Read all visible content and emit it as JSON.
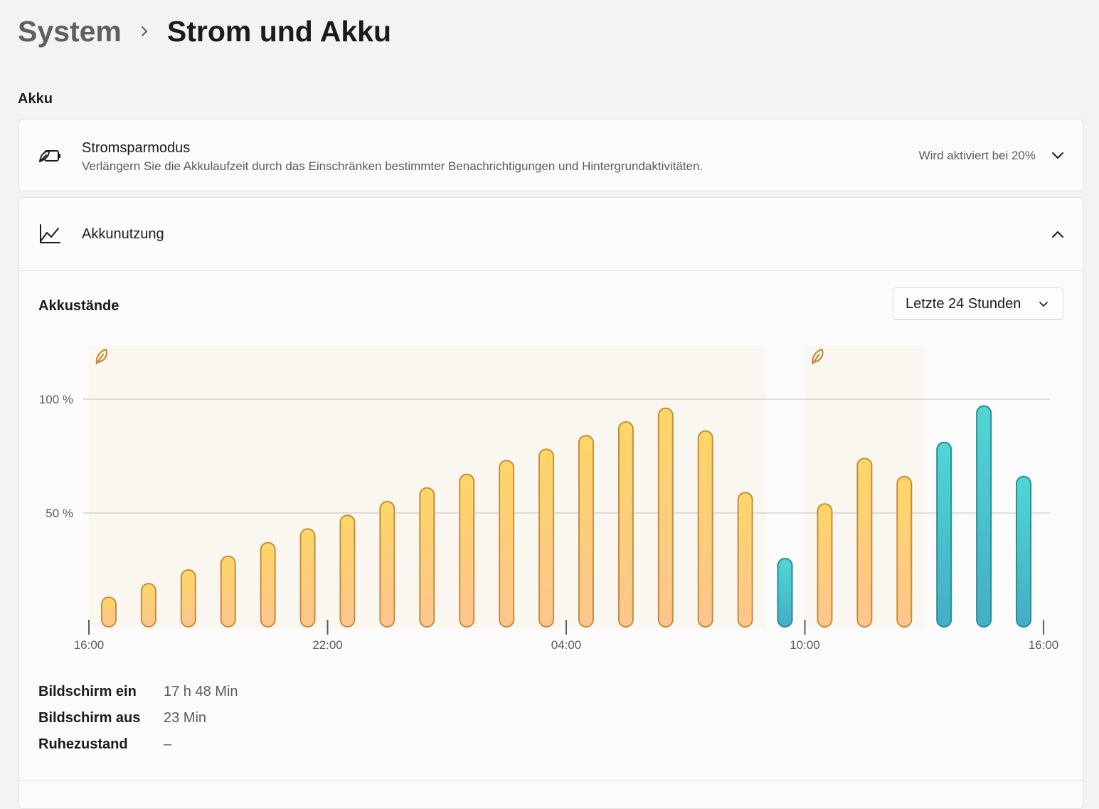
{
  "breadcrumb": {
    "parent": "System",
    "separator": "›",
    "current": "Strom und Akku"
  },
  "section": {
    "title": "Akku"
  },
  "battery_saver": {
    "title": "Stromsparmodus",
    "description": "Verlängern Sie die Akkulaufzeit durch das Einschränken bestimmter Benachrichtigungen und Hintergrundaktivitäten.",
    "status": "Wird aktiviert bei 20%",
    "icon": "battery-saver-icon"
  },
  "usage": {
    "title": "Akkunutzung",
    "icon": "line-chart-icon",
    "levels_title": "Akkustände",
    "range_dropdown": {
      "selected": "Letzte 24 Stunden"
    }
  },
  "colors": {
    "discharging_top": "#fdd667",
    "discharging_bottom": "#fdc58f",
    "discharging_stroke": "#c68d3c",
    "charging_top": "#4fd6d3",
    "charging_bottom": "#44aec6",
    "charging_stroke": "#2b8a97",
    "saver_band": "#faf7f0",
    "saver_leaf": "#c58a3a"
  },
  "chart_data": {
    "type": "bar",
    "title": "Akkustände",
    "y_tick_labels": [
      "100 %",
      "50 %"
    ],
    "ylim": [
      0,
      100
    ],
    "x_tick_labels": [
      "16:00",
      "22:00",
      "04:00",
      "10:00",
      "16:00"
    ],
    "xlim": [
      0,
      24
    ],
    "grid": true,
    "bar_slot_hours": 1,
    "series": [
      {
        "status": "discharging",
        "points": [
          {
            "hour": 0.5,
            "value": 13
          },
          {
            "hour": 1.5,
            "value": 19
          },
          {
            "hour": 2.5,
            "value": 25
          },
          {
            "hour": 3.5,
            "value": 31
          },
          {
            "hour": 4.5,
            "value": 37
          },
          {
            "hour": 5.5,
            "value": 43
          },
          {
            "hour": 6.5,
            "value": 49
          },
          {
            "hour": 7.5,
            "value": 55
          },
          {
            "hour": 8.5,
            "value": 61
          },
          {
            "hour": 9.5,
            "value": 67
          },
          {
            "hour": 10.5,
            "value": 73
          },
          {
            "hour": 11.5,
            "value": 78
          },
          {
            "hour": 12.5,
            "value": 84
          },
          {
            "hour": 13.5,
            "value": 90
          },
          {
            "hour": 14.5,
            "value": 96
          },
          {
            "hour": 15.5,
            "value": 86
          },
          {
            "hour": 16.5,
            "value": 59
          },
          {
            "hour": 18.5,
            "value": 54
          },
          {
            "hour": 19.5,
            "value": 74
          },
          {
            "hour": 20.5,
            "value": 66
          }
        ]
      },
      {
        "status": "charging",
        "points": [
          {
            "hour": 17.5,
            "value": 30
          },
          {
            "hour": 21.5,
            "value": 81
          },
          {
            "hour": 22.5,
            "value": 97
          },
          {
            "hour": 23.5,
            "value": 66
          }
        ]
      }
    ],
    "battery_saver_periods": [
      {
        "start_hour": 0,
        "end_hour": 17
      },
      {
        "start_hour": 18,
        "end_hour": 21
      }
    ]
  },
  "stats": [
    {
      "label": "Bildschirm ein",
      "value": "17 h 48 Min"
    },
    {
      "label": "Bildschirm aus",
      "value": "23 Min"
    },
    {
      "label": "Ruhezustand",
      "value": "–"
    }
  ]
}
